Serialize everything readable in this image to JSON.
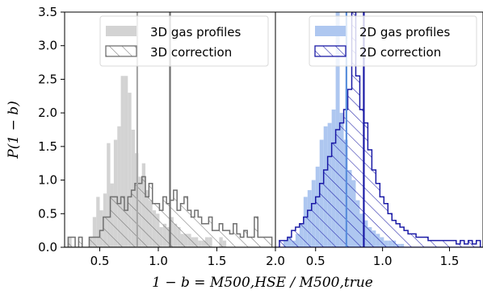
{
  "chart_data": [
    {
      "type": "histogram",
      "panel": "left",
      "title": "",
      "xlabel": "",
      "ylabel": "P(1 − b)",
      "xlim": [
        0.2,
        2.0
      ],
      "ylim": [
        0,
        3.5
      ],
      "xticks": [
        "0.5",
        "1.0",
        "1.5",
        "2.0"
      ],
      "yticks": [
        "0.0",
        "0.5",
        "1.0",
        "1.5",
        "2.0",
        "2.5",
        "3.0",
        "3.5"
      ],
      "legend_position": "top-right",
      "bin_width": 0.03,
      "bin_start": 0.2,
      "series": [
        {
          "name": "3D gas profiles",
          "style": "filled",
          "color": "#d3d3d3",
          "values": [
            0,
            0.15,
            0,
            0,
            0,
            0,
            0,
            0.15,
            0.45,
            0.75,
            0.55,
            0.8,
            1.55,
            0.95,
            1.6,
            1.8,
            2.55,
            2.55,
            2.3,
            1.75,
            1.4,
            1.05,
            1.25,
            0.85,
            0.7,
            0.55,
            0.5,
            0.3,
            0.35,
            0.3,
            0.45,
            0.35,
            0.3,
            0.2,
            0.2,
            0.2,
            0.15,
            0.15,
            0.1,
            0.1,
            0.15,
            0.15,
            0,
            0,
            0.15,
            0.1,
            0,
            0,
            0,
            0,
            0,
            0,
            0,
            0,
            0,
            0,
            0,
            0,
            0,
            0
          ]
        },
        {
          "name": "3D correction",
          "style": "hatched-step",
          "color": "#707070",
          "values": [
            0,
            0.15,
            0.15,
            0,
            0.15,
            0,
            0,
            0.15,
            0.15,
            0.15,
            0.25,
            0.45,
            0.45,
            0.75,
            0.75,
            0.65,
            0.75,
            0.55,
            0.75,
            0.85,
            0.95,
            0.95,
            1.05,
            0.75,
            0.95,
            0.65,
            0.65,
            0.55,
            0.75,
            0.65,
            0.7,
            0.85,
            0.55,
            0.65,
            0.75,
            0.55,
            0.45,
            0.55,
            0.45,
            0.35,
            0.35,
            0.45,
            0.25,
            0.25,
            0.35,
            0.25,
            0.25,
            0.2,
            0.35,
            0.2,
            0.15,
            0.25,
            0.15,
            0.15,
            0.45,
            0.15,
            0.15,
            0.15,
            0.15,
            0
          ]
        }
      ],
      "vlines": [
        {
          "x": 0.82,
          "color": "#a8a8a8"
        },
        {
          "x": 1.1,
          "color": "#707070"
        }
      ]
    },
    {
      "type": "histogram",
      "panel": "right",
      "title": "",
      "xlabel": "1 − b = M500,HSE / M500,true",
      "ylabel": "",
      "xlim": [
        0.2,
        1.75
      ],
      "ylim": [
        0,
        3.5
      ],
      "xticks": [
        "0.5",
        "1.0",
        "1.5"
      ],
      "legend_position": "top-right",
      "bin_width": 0.03,
      "bin_start": 0.2,
      "series": [
        {
          "name": "2D gas profiles",
          "style": "filled",
          "color": "#aec7f0",
          "values": [
            0,
            0,
            0.1,
            0.15,
            0.1,
            0.2,
            0.35,
            0.75,
            0.85,
            1.0,
            1.2,
            1.6,
            1.8,
            1.85,
            2.05,
            3.5,
            2.0,
            1.6,
            1.15,
            1.0,
            0.7,
            0.5,
            0.4,
            0.3,
            0.25,
            0.2,
            0.15,
            0.1,
            0.1,
            0.1,
            0.05,
            0.05,
            0,
            0,
            0,
            0,
            0,
            0,
            0,
            0,
            0,
            0,
            0,
            0,
            0,
            0,
            0,
            0,
            0,
            0,
            0,
            0
          ]
        },
        {
          "name": "2D correction",
          "style": "hatched-step",
          "color": "#1a1aa6",
          "values": [
            0,
            0.1,
            0.1,
            0.15,
            0.25,
            0.3,
            0.35,
            0.45,
            0.55,
            0.65,
            0.75,
            0.95,
            1.15,
            1.35,
            1.55,
            1.75,
            1.85,
            2.05,
            2.35,
            3.5,
            2.55,
            2.05,
            1.85,
            1.45,
            1.15,
            0.95,
            0.75,
            0.65,
            0.5,
            0.4,
            0.35,
            0.3,
            0.25,
            0.2,
            0.2,
            0.15,
            0.15,
            0.15,
            0.1,
            0.1,
            0.1,
            0.1,
            0.1,
            0.1,
            0.1,
            0.05,
            0.1,
            0.05,
            0.1,
            0.05,
            0.1,
            0
          ]
        }
      ],
      "vlines": [
        {
          "x": 0.73,
          "color": "#5a8fdc"
        },
        {
          "x": 0.86,
          "color": "#1a1aa6"
        }
      ]
    }
  ]
}
